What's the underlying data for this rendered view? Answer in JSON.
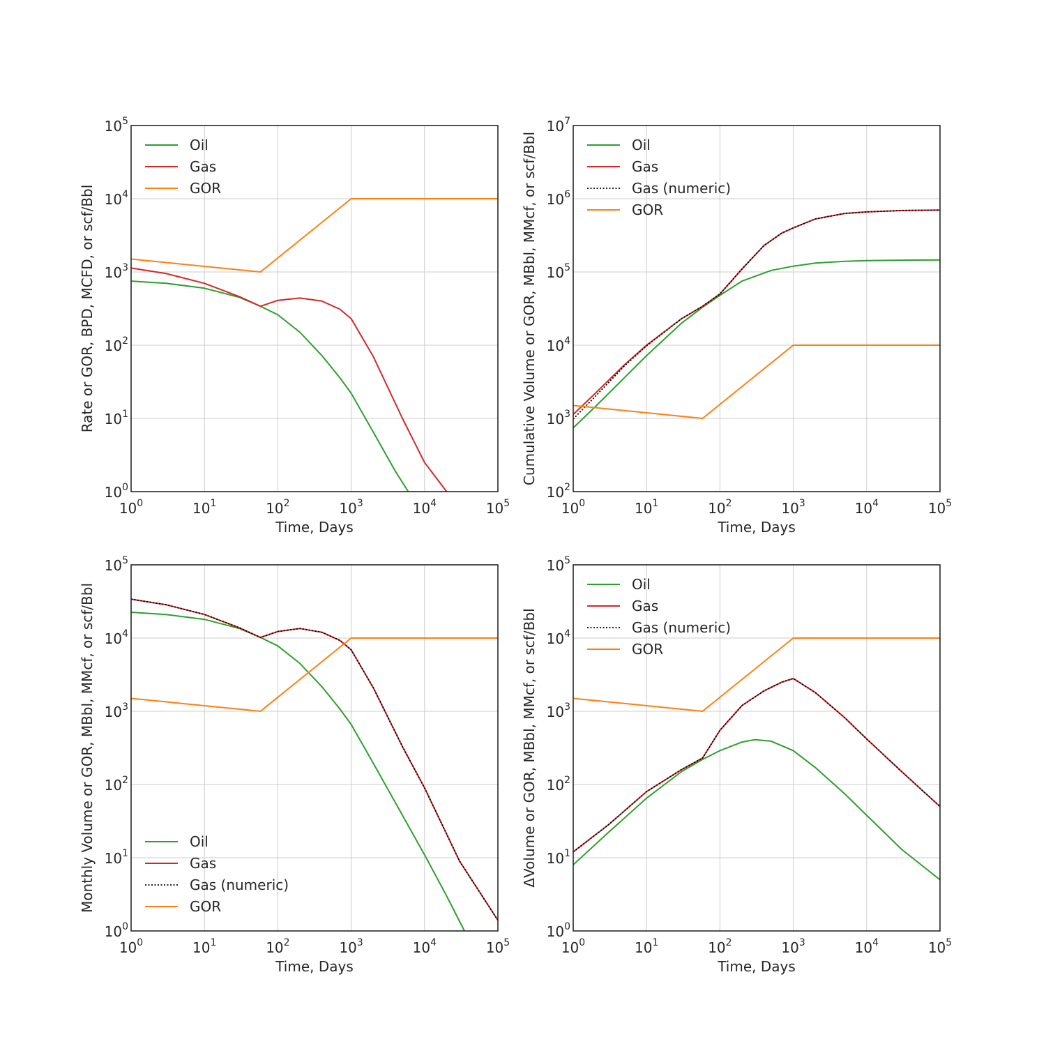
{
  "colors": {
    "oil": "#2ca02c",
    "gas": "#d62728",
    "gor": "#ff7f0e",
    "numeric": "#000000"
  },
  "chart_data": [
    {
      "type": "line",
      "xscale": "log",
      "yscale": "log",
      "xlabel": "Time, Days",
      "ylabel": "Rate or GOR, BPD, MCFD, or scf/Bbl",
      "xlim": [
        1,
        100000
      ],
      "ylim": [
        1,
        100000
      ],
      "xticks": [
        1,
        10,
        100,
        1000,
        10000,
        100000
      ],
      "yticks": [
        1,
        10,
        100,
        1000,
        10000,
        100000
      ],
      "grid": true,
      "legend_position": "upper-left",
      "series": [
        {
          "name": "Oil",
          "color": "#2ca02c",
          "style": "solid",
          "x": [
            1,
            3,
            10,
            30,
            58,
            100,
            200,
            400,
            700,
            1000,
            2000,
            4000,
            6000
          ],
          "y": [
            750,
            700,
            600,
            450,
            340,
            260,
            150,
            72,
            36,
            22,
            6.5,
            1.9,
            1
          ]
        },
        {
          "name": "Gas",
          "color": "#d62728",
          "style": "solid",
          "x": [
            1,
            3,
            10,
            30,
            58,
            100,
            200,
            400,
            700,
            1000,
            2000,
            5000,
            10000,
            20000
          ],
          "y": [
            1130,
            950,
            700,
            460,
            340,
            410,
            440,
            400,
            310,
            230,
            70,
            10,
            2.5,
            1
          ]
        },
        {
          "name": "GOR",
          "color": "#ff7f0e",
          "style": "solid",
          "x": [
            1,
            58,
            1000,
            100000
          ],
          "y": [
            1500,
            1000,
            10000,
            10000
          ]
        }
      ]
    },
    {
      "type": "line",
      "xscale": "log",
      "yscale": "log",
      "xlabel": "Time, Days",
      "ylabel": "Cumulative Volume or GOR, MBbl, MMcf, or scf/Bbl",
      "xlim": [
        1,
        100000
      ],
      "ylim": [
        100,
        10000000
      ],
      "xticks": [
        1,
        10,
        100,
        1000,
        10000,
        100000
      ],
      "yticks": [
        100,
        1000,
        10000,
        100000,
        1000000,
        10000000
      ],
      "grid": true,
      "legend_position": "upper-left",
      "series": [
        {
          "name": "Oil",
          "color": "#2ca02c",
          "style": "solid",
          "x": [
            1,
            2,
            5,
            10,
            30,
            58,
            100,
            200,
            500,
            1000,
            2000,
            5000,
            10000,
            30000,
            100000
          ],
          "y": [
            740,
            1450,
            3600,
            7200,
            20000,
            33000,
            48000,
            75000,
            105000,
            120000,
            132000,
            140000,
            143000,
            145000,
            146000
          ]
        },
        {
          "name": "Gas",
          "color": "#d62728",
          "style": "solid",
          "x": [
            1,
            2,
            5,
            10,
            30,
            58,
            100,
            200,
            400,
            700,
            1000,
            2000,
            5000,
            10000,
            30000,
            100000
          ],
          "y": [
            1130,
            2200,
            5400,
            10000,
            23000,
            34000,
            50000,
            110000,
            230000,
            340000,
            400000,
            530000,
            630000,
            660000,
            690000,
            700000
          ]
        },
        {
          "name": "Gas (numeric)",
          "color": "#000000",
          "style": "dotted",
          "x": [
            1,
            2,
            5,
            10,
            30,
            58,
            100,
            200,
            400,
            700,
            1000,
            2000,
            5000,
            10000,
            30000,
            100000
          ],
          "y": [
            980,
            2000,
            5200,
            9800,
            23000,
            34000,
            50000,
            110000,
            230000,
            340000,
            400000,
            530000,
            630000,
            660000,
            690000,
            700000
          ]
        },
        {
          "name": "GOR",
          "color": "#ff7f0e",
          "style": "solid",
          "x": [
            1,
            58,
            1000,
            100000
          ],
          "y": [
            1500,
            1000,
            10000,
            10000
          ]
        }
      ]
    },
    {
      "type": "line",
      "xscale": "log",
      "yscale": "log",
      "xlabel": "Time, Days",
      "ylabel": "Monthly Volume or GOR, MBbl, MMcf, or scf/Bbl",
      "xlim": [
        1,
        100000
      ],
      "ylim": [
        1,
        100000
      ],
      "xticks": [
        1,
        10,
        100,
        1000,
        10000,
        100000
      ],
      "yticks": [
        1,
        10,
        100,
        1000,
        10000,
        100000
      ],
      "grid": true,
      "legend_position": "lower-left",
      "series": [
        {
          "name": "Oil",
          "color": "#2ca02c",
          "style": "solid",
          "x": [
            1,
            3,
            10,
            30,
            58,
            100,
            200,
            400,
            700,
            1000,
            2000,
            5000,
            10000,
            20000,
            35000
          ],
          "y": [
            22500,
            21000,
            18000,
            13500,
            10200,
            7800,
            4500,
            2160,
            1080,
            660,
            195,
            38,
            11,
            3,
            1
          ]
        },
        {
          "name": "Gas",
          "color": "#d62728",
          "style": "solid",
          "x": [
            1,
            3,
            10,
            30,
            58,
            100,
            200,
            400,
            700,
            1000,
            2000,
            5000,
            10000,
            30000,
            100000
          ],
          "y": [
            34000,
            28500,
            21000,
            13800,
            10200,
            12300,
            13500,
            12000,
            9300,
            6900,
            2100,
            330,
            90,
            9,
            1.4
          ]
        },
        {
          "name": "Gas (numeric)",
          "color": "#000000",
          "style": "dotted",
          "x": [
            1,
            3,
            10,
            30,
            58,
            100,
            200,
            400,
            700,
            1000,
            2000,
            5000,
            10000,
            30000,
            100000
          ],
          "y": [
            34000,
            28500,
            21000,
            13800,
            10200,
            12300,
            13500,
            12000,
            9300,
            6900,
            2100,
            330,
            90,
            9,
            1.4
          ]
        },
        {
          "name": "GOR",
          "color": "#ff7f0e",
          "style": "solid",
          "x": [
            1,
            58,
            1000,
            100000
          ],
          "y": [
            1500,
            1000,
            10000,
            10000
          ]
        }
      ]
    },
    {
      "type": "line",
      "xscale": "log",
      "yscale": "log",
      "xlabel": "Time, Days",
      "ylabel": "ΔVolume or GOR, MBbl, MMcf, or scf/Bbl",
      "xlim": [
        1,
        100000
      ],
      "ylim": [
        1,
        100000
      ],
      "xticks": [
        1,
        10,
        100,
        1000,
        10000,
        100000
      ],
      "yticks": [
        1,
        10,
        100,
        1000,
        10000,
        100000
      ],
      "grid": true,
      "legend_position": "upper-left",
      "series": [
        {
          "name": "Oil",
          "color": "#2ca02c",
          "style": "solid",
          "x": [
            1,
            3,
            10,
            30,
            58,
            100,
            200,
            300,
            500,
            1000,
            2000,
            5000,
            10000,
            30000,
            100000
          ],
          "y": [
            8,
            22,
            65,
            150,
            220,
            290,
            380,
            410,
            390,
            290,
            170,
            75,
            38,
            13,
            5
          ]
        },
        {
          "name": "Gas",
          "color": "#d62728",
          "style": "solid",
          "x": [
            1,
            3,
            10,
            30,
            58,
            100,
            200,
            400,
            700,
            1000,
            2000,
            5000,
            10000,
            30000,
            100000
          ],
          "y": [
            12,
            28,
            80,
            160,
            230,
            550,
            1200,
            1900,
            2500,
            2800,
            1800,
            820,
            420,
            150,
            50
          ]
        },
        {
          "name": "Gas (numeric)",
          "color": "#000000",
          "style": "dotted",
          "x": [
            1,
            3,
            10,
            30,
            58,
            100,
            200,
            400,
            700,
            1000,
            2000,
            5000,
            10000,
            30000,
            100000
          ],
          "y": [
            12,
            28,
            80,
            160,
            230,
            550,
            1200,
            1900,
            2500,
            2800,
            1800,
            820,
            420,
            150,
            50
          ]
        },
        {
          "name": "GOR",
          "color": "#ff7f0e",
          "style": "solid",
          "x": [
            1,
            58,
            1000,
            100000
          ],
          "y": [
            1500,
            1000,
            10000,
            10000
          ]
        }
      ]
    }
  ]
}
